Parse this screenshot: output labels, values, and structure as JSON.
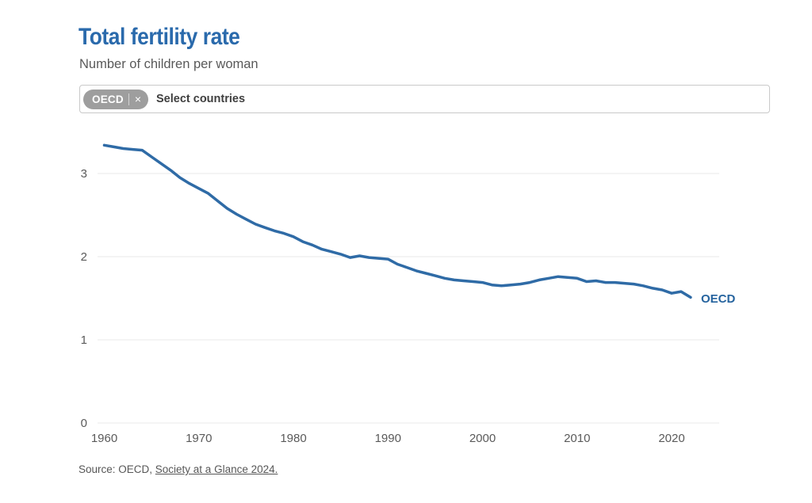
{
  "page": {
    "title": "Total fertility rate",
    "subtitle": "Number of children per woman",
    "source_prefix": "Source: OECD, ",
    "source_link": "Society at a Glance 2024."
  },
  "country_selector": {
    "selected_tags": [
      {
        "label": "OECD",
        "remove_icon": "×"
      }
    ],
    "placeholder": "Select countries"
  },
  "chart_data": {
    "type": "line",
    "title": "Total fertility rate",
    "subtitle": "Number of children per woman",
    "xlabel": "",
    "ylabel": "Number of children per woman",
    "grid": "horizontal-only",
    "legend": "end-of-line-label",
    "xlim": [
      1960,
      2022
    ],
    "ylim": [
      0,
      3.5
    ],
    "x_ticks": [
      1960,
      1970,
      1980,
      1990,
      2000,
      2010,
      2020
    ],
    "y_ticks": [
      0,
      1,
      2,
      3
    ],
    "x": [
      1960,
      1961,
      1962,
      1963,
      1964,
      1965,
      1966,
      1967,
      1968,
      1969,
      1970,
      1971,
      1972,
      1973,
      1974,
      1975,
      1976,
      1977,
      1978,
      1979,
      1980,
      1981,
      1982,
      1983,
      1984,
      1985,
      1986,
      1987,
      1988,
      1989,
      1990,
      1991,
      1992,
      1993,
      1994,
      1995,
      1996,
      1997,
      1998,
      1999,
      2000,
      2001,
      2002,
      2003,
      2004,
      2005,
      2006,
      2007,
      2008,
      2009,
      2010,
      2011,
      2012,
      2013,
      2014,
      2015,
      2016,
      2017,
      2018,
      2019,
      2020,
      2021,
      2022
    ],
    "series": [
      {
        "name": "OECD",
        "color": "#2f6ba6",
        "values": [
          3.34,
          3.32,
          3.3,
          3.29,
          3.28,
          3.2,
          3.12,
          3.04,
          2.95,
          2.88,
          2.82,
          2.76,
          2.67,
          2.58,
          2.51,
          2.45,
          2.39,
          2.35,
          2.31,
          2.28,
          2.24,
          2.18,
          2.14,
          2.09,
          2.06,
          2.03,
          1.99,
          2.01,
          1.99,
          1.98,
          1.97,
          1.91,
          1.87,
          1.83,
          1.8,
          1.77,
          1.74,
          1.72,
          1.71,
          1.7,
          1.69,
          1.66,
          1.65,
          1.66,
          1.67,
          1.69,
          1.72,
          1.74,
          1.76,
          1.75,
          1.74,
          1.7,
          1.71,
          1.69,
          1.69,
          1.68,
          1.67,
          1.65,
          1.62,
          1.6,
          1.56,
          1.58,
          1.51
        ]
      }
    ]
  },
  "colors": {
    "title": "#2a6aac",
    "line": "#2f6ba6",
    "series_label": "#25639e",
    "tick_text": "#5a5a5a",
    "grid": "#e8e8e8",
    "chip_bg": "#9e9e9e",
    "chip_text": "#ffffff",
    "box_border": "#c9c9c9"
  }
}
